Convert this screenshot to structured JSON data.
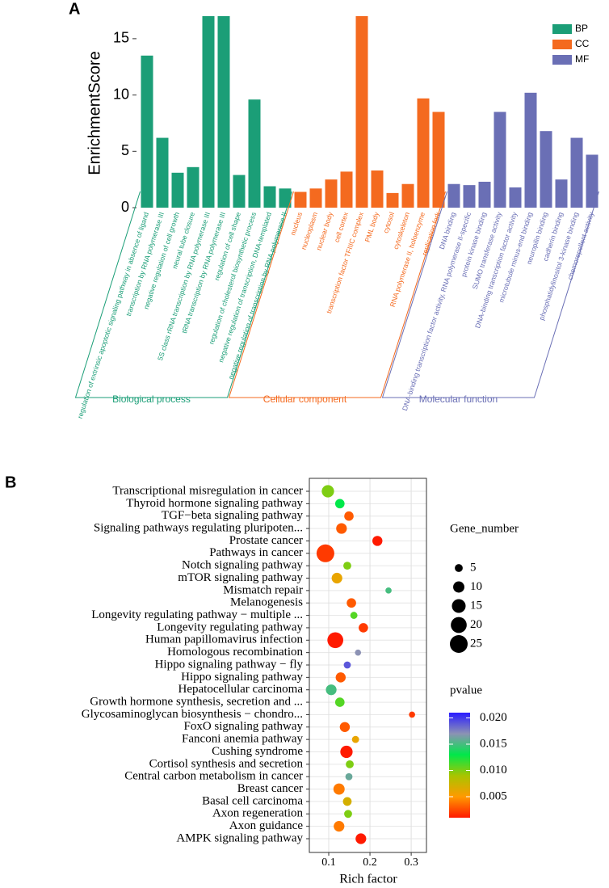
{
  "chart_data": [
    {
      "panel": "A",
      "type": "bar",
      "y_label": "EnrichmentScore",
      "categories": [
        "regulation of extrinsic apoptotic signaling pathway in absence of ligand",
        "transcription by RNA polymerase III",
        "negative regulation of cell growth",
        "neural tube closure",
        "5S class rRNA transcription by RNA polymerase III",
        "tRNA transcription by RNA polymerase III",
        "regulation of cell shape",
        "regulation of cholesterol biosynthetic process",
        "negative regulation of transcription, DNA-templated",
        "negative regulation of transcription by RNA polymerase II",
        "nucleus",
        "nucleoplasm",
        "nuclear body",
        "cell cortex",
        "transcription factor TFIIIC complex",
        "PML body",
        "cytosol",
        "cytoskeleton",
        "RNA polymerase II, holoenzyme",
        "replication fork",
        "DNA binding",
        "DNA-binding transcription factor activity, RNA polymerase II-specific",
        "protein kinase binding",
        "SUMO transferase activity",
        "DNA-binding transcription factor activity",
        "microtubule minus-end binding",
        "neuropilin binding",
        "cadherin binding",
        "phosphatidylinositol 3-kinase binding",
        "chemorepellent activity"
      ],
      "series": [
        {
          "name": "BP",
          "group_label": "Biological process",
          "color": "#1b9e77",
          "values": [
            13.5,
            6.2,
            3.1,
            3.6,
            17,
            17,
            2.9,
            9.6,
            1.9,
            1.7,
            null,
            null,
            null,
            null,
            null,
            null,
            null,
            null,
            null,
            null,
            null,
            null,
            null,
            null,
            null,
            null,
            null,
            null,
            null,
            null
          ]
        },
        {
          "name": "CC",
          "group_label": "Cellular component",
          "color": "#f46a1f",
          "values": [
            null,
            null,
            null,
            null,
            null,
            null,
            null,
            null,
            null,
            null,
            1.4,
            1.7,
            2.5,
            3.2,
            17,
            3.3,
            1.3,
            2.1,
            9.7,
            8.5,
            null,
            null,
            null,
            null,
            null,
            null,
            null,
            null,
            null,
            null
          ]
        },
        {
          "name": "MF",
          "group_label": "Molecular function",
          "color": "#6a6fb5",
          "values": [
            null,
            null,
            null,
            null,
            null,
            null,
            null,
            null,
            null,
            null,
            null,
            null,
            null,
            null,
            null,
            null,
            null,
            null,
            null,
            null,
            2.1,
            2.0,
            2.3,
            8.5,
            1.8,
            10.2,
            6.8,
            2.5,
            6.2,
            4.7
          ]
        }
      ],
      "ylim": [
        0,
        17
      ],
      "yticks": [
        0,
        5,
        10,
        15
      ],
      "legend": "top-right"
    },
    {
      "panel": "B",
      "type": "dot",
      "x_label": "Rich factor",
      "categories": [
        "Transcriptional misregulation in cancer",
        "Thyroid hormone signaling pathway",
        "TGF−beta signaling pathway",
        "Signaling pathways regulating pluripoten...",
        "Prostate cancer",
        "Pathways in cancer",
        "Notch signaling pathway",
        "mTOR signaling pathway",
        "Mismatch repair",
        "Melanogenesis",
        "Longevity regulating pathway − multiple ...",
        "Longevity regulating pathway",
        "Human papillomavirus infection",
        "Homologous recombination",
        "Hippo signaling pathway − fly",
        "Hippo signaling pathway",
        "Hepatocellular carcinoma",
        "Growth hormone synthesis, secretion and ...",
        "Glycosaminoglycan biosynthesis − chondro...",
        "FoxO signaling pathway",
        "Fanconi anemia pathway",
        "Cushing syndrome",
        "Cortisol synthesis and secretion",
        "Central carbon metabolism in cancer",
        "Breast cancer",
        "Basal cell carcinoma",
        "Axon regeneration",
        "Axon guidance",
        "AMPK signaling pathway"
      ],
      "values": [
        0.098,
        0.127,
        0.149,
        0.131,
        0.218,
        0.092,
        0.145,
        0.12,
        0.245,
        0.155,
        0.161,
        0.184,
        0.116,
        0.171,
        0.145,
        0.129,
        0.106,
        0.127,
        0.302,
        0.139,
        0.165,
        0.143,
        0.151,
        0.149,
        0.125,
        0.145,
        0.147,
        0.125,
        0.178
      ],
      "size": [
        12,
        7,
        7,
        9,
        8,
        25,
        5,
        9,
        3,
        7,
        4,
        7,
        20,
        3,
        4,
        8,
        9,
        7,
        3,
        8,
        4,
        12,
        5,
        4,
        10,
        6,
        5,
        9,
        9
      ],
      "color_values": [
        0.01,
        0.013,
        0.003,
        0.003,
        0.001,
        0.002,
        0.01,
        0.006,
        0.015,
        0.003,
        0.011,
        0.002,
        0.001,
        0.017,
        0.019,
        0.003,
        0.015,
        0.011,
        0.002,
        0.003,
        0.006,
        0.001,
        0.01,
        0.016,
        0.004,
        0.007,
        0.01,
        0.004,
        0.001
      ],
      "xlim": [
        0.053,
        0.337
      ],
      "xticks": [
        0.1,
        0.2,
        0.3
      ],
      "grid": true,
      "size_label": "Gene_number",
      "size_ticks": [
        5,
        10,
        15,
        20,
        25
      ],
      "color_label": "pvalue",
      "colorlim": [
        0.001,
        0.021
      ],
      "color_ticks": [
        0.005,
        {
          "value": 0.01,
          "label": "0.010"
        },
        0.015,
        {
          "value": 0.02,
          "label": "0.020"
        }
      ],
      "color_scale": [
        "#ff1a00",
        "#ff9a00",
        "#a8c400",
        "#00e84a",
        "#8c92b4",
        "#2a1cff"
      ]
    }
  ]
}
